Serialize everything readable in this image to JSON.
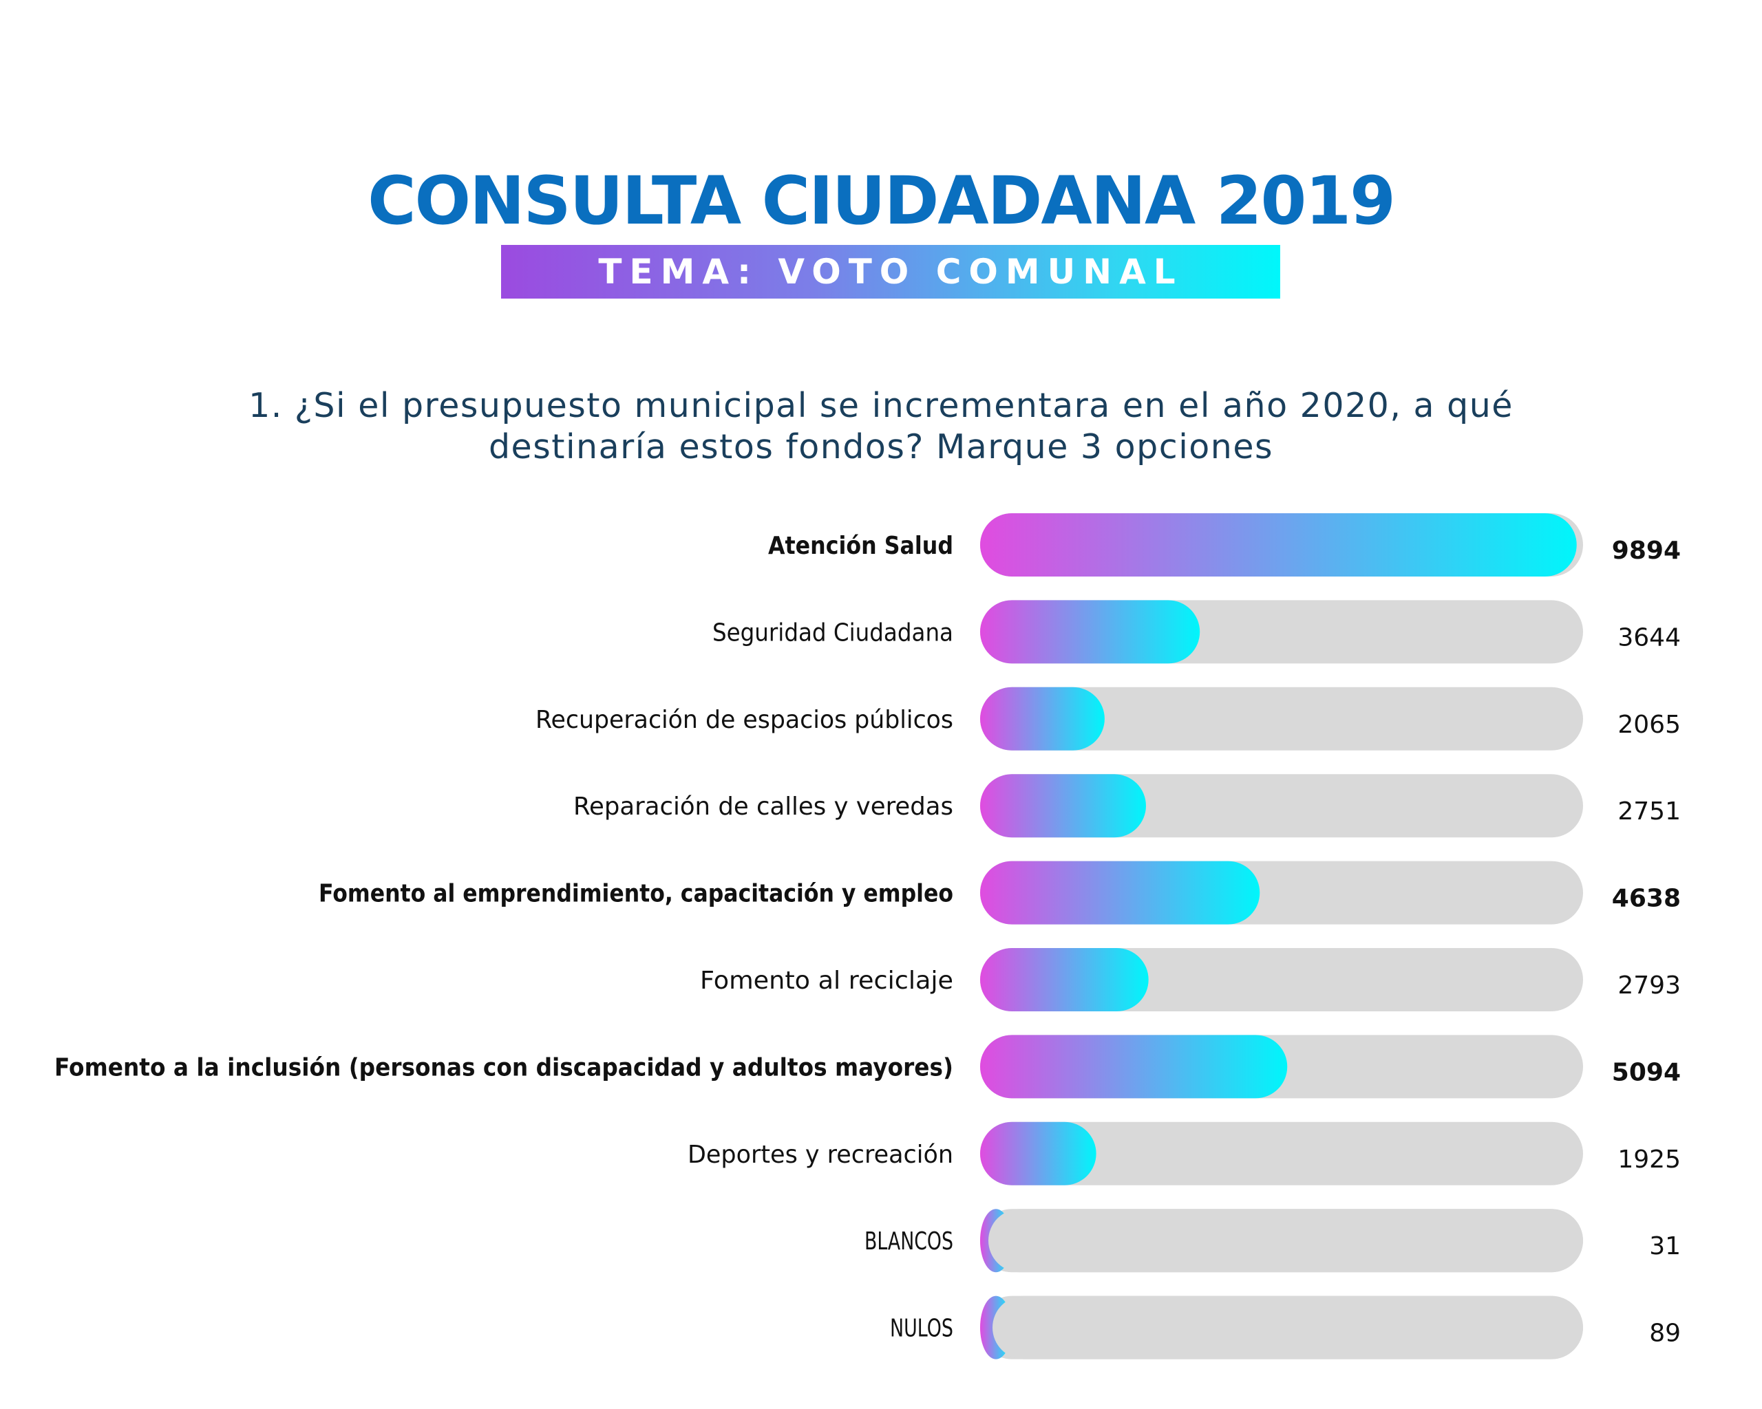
{
  "header": {
    "title": "CONSULTA CIUDADANA 2019",
    "subtitle": "TEMA: VOTO COMUNAL"
  },
  "question": {
    "line1": "1. ¿Si el presupuesto municipal se incrementara en el año 2020, a qué",
    "line2": "destinaría estos fondos? Marque 3 opciones"
  },
  "colors": {
    "title": "#0a6fbf",
    "question": "#1a3f5c",
    "bar_gradient_start": "#e04ce0",
    "bar_gradient_end": "#00f6fb",
    "track": "#d9d9d9",
    "label": "#111111"
  },
  "chart_data": {
    "type": "bar",
    "orientation": "horizontal",
    "xlim": [
      0,
      10000
    ],
    "grid": false,
    "categories": [
      "Atención Salud",
      "Seguridad Ciudadana",
      "Recuperación de espacios públicos",
      "Reparación de calles y veredas",
      "Fomento al emprendimiento, capacitación y empleo",
      "Fomento al reciclaje",
      "Fomento a la inclusión (personas con discapacidad y adultos mayores)",
      "Deportes y recreación",
      "BLANCOS",
      "NULOS"
    ],
    "values": [
      9894,
      3644,
      2065,
      2751,
      4638,
      2793,
      5094,
      1925,
      31,
      89
    ],
    "highlighted": [
      true,
      false,
      false,
      false,
      true,
      false,
      true,
      false,
      false,
      false
    ]
  }
}
